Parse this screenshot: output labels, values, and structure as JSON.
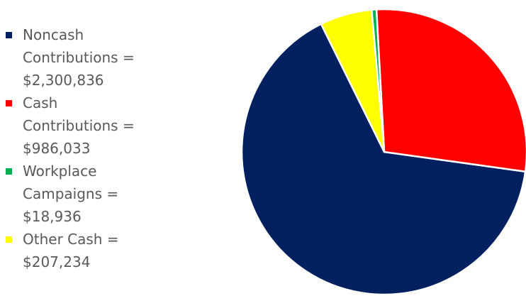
{
  "chart_data": {
    "type": "pie",
    "title": "",
    "legend_position": "left",
    "slices": [
      {
        "label_lines": [
          "Noncash",
          "Contributions =",
          "$2,300,836"
        ],
        "value": 2300836,
        "color": "#002060"
      },
      {
        "label_lines": [
          "Cash",
          "Contributions =",
          "$986,033"
        ],
        "value": 986033,
        "color": "#ff0000"
      },
      {
        "label_lines": [
          "Workplace",
          "Campaigns =",
          "$18,936"
        ],
        "value": 18936,
        "color": "#00b050"
      },
      {
        "label_lines": [
          "Other Cash =",
          "$207,234"
        ],
        "value": 207234,
        "color": "#ffff00"
      }
    ]
  }
}
